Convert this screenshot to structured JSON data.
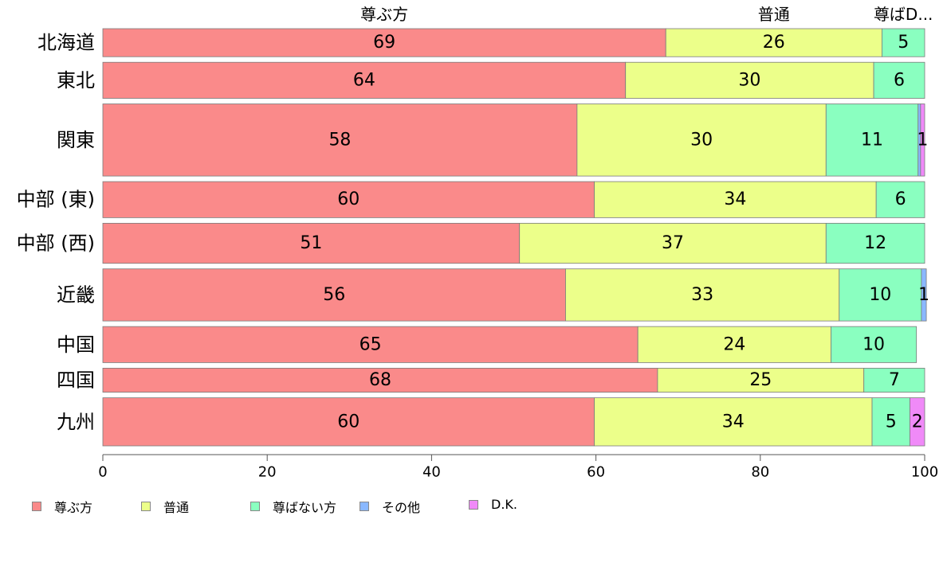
{
  "chart_data": {
    "type": "bar",
    "orientation": "horizontal",
    "stacked": true,
    "categories": [
      "北海道",
      "東北",
      "関東",
      "中部 (東)",
      "中部 (西)",
      "近畿",
      "中国",
      "四国",
      "九州"
    ],
    "series": [
      {
        "name": "尊ぶ方",
        "color": "#fa8a8a",
        "values": [
          68.5,
          63.6,
          57.7,
          59.8,
          50.7,
          56.3,
          65.1,
          67.5,
          59.8
        ]
      },
      {
        "name": "普通",
        "color": "#ecff8a",
        "values": [
          26.3,
          30.2,
          30.3,
          34.3,
          37.3,
          33.3,
          23.5,
          25.1,
          33.8
        ]
      },
      {
        "name": "尊ばない方",
        "color": "#8affc0",
        "values": [
          5.2,
          6.2,
          11.2,
          5.9,
          12.0,
          10.0,
          10.4,
          7.4,
          4.6
        ]
      },
      {
        "name": "その他",
        "color": "#8ab8ff",
        "values": [
          0,
          0,
          0.3,
          0,
          0,
          0.6,
          0,
          0,
          0
        ]
      },
      {
        "name": "D.K.",
        "color": "#f08af8",
        "values": [
          0,
          0,
          0.5,
          0,
          0,
          0,
          0,
          0,
          1.8
        ]
      }
    ],
    "relative_widths": [
      0.7,
      0.9,
      1.8,
      0.9,
      1.0,
      1.3,
      0.9,
      0.6,
      1.2
    ],
    "top_labels": [
      "尊ぶ方",
      "普通",
      "尊ばD..."
    ],
    "xlim": [
      0,
      100
    ],
    "xticks": [
      "0",
      "20",
      "40",
      "60",
      "80",
      "100"
    ],
    "xlabel": "",
    "ylabel": "",
    "legend_position": "bottom-left",
    "grid": false
  },
  "legend": {
    "items": [
      {
        "label": "尊ぶ方",
        "color": "#fa8a8a"
      },
      {
        "label": "普通",
        "color": "#ecff8a"
      },
      {
        "label": "尊ばない方",
        "color": "#8affc0"
      },
      {
        "label": "その他",
        "color": "#8ab8ff"
      },
      {
        "label": "D.K.",
        "color": "#f08af8"
      }
    ]
  }
}
